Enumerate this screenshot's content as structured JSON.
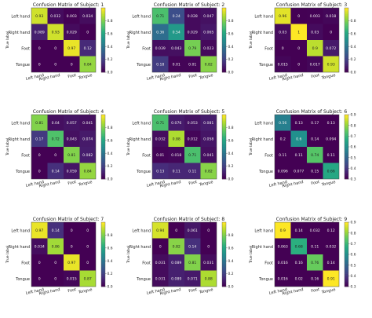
{
  "chart_data": [
    {
      "type": "heatmap",
      "title": "Confusion Matrix of Subject: 1",
      "ylabel": "True label",
      "x_categories": [
        "Left hand",
        "Right hand",
        "Foot",
        "Tongue"
      ],
      "y_categories": [
        "Left hand",
        "Right hand",
        "Foot",
        "Tongue"
      ],
      "values": [
        [
          0.93,
          0.032,
          0.003,
          0.034
        ],
        [
          0.089,
          0.93,
          0.029,
          0
        ],
        [
          0,
          0,
          0.97,
          0.12
        ],
        [
          0,
          0,
          0,
          0.84
        ]
      ],
      "cells": [
        [
          "0.93",
          "0.032",
          "0.003",
          "0.034"
        ],
        [
          "0.089",
          "0.93",
          "0.029",
          "0"
        ],
        [
          "0",
          "0",
          "0.97",
          "0.12"
        ],
        [
          "0",
          "0",
          "0",
          "0.84"
        ]
      ],
      "colorbar_ticks": [
        "0.0",
        "0.2",
        "0.4",
        "0.6",
        "0.8"
      ],
      "colorbar_range": [
        0,
        1
      ]
    },
    {
      "type": "heatmap",
      "title": "Confusion Matrix of Subject: 2",
      "ylabel": "True label",
      "x_categories": [
        "Left hand",
        "Right hand",
        "Foot",
        "Tongue"
      ],
      "y_categories": [
        "Left hand",
        "Right hand",
        "Foot",
        "Tongue"
      ],
      "values": [
        [
          0.71,
          0.24,
          0.028,
          0.047
        ],
        [
          0.36,
          0.54,
          0.029,
          0.065
        ],
        [
          0.039,
          0.043,
          0.79,
          0.023
        ],
        [
          0.18,
          0.01,
          0.01,
          0.82
        ]
      ],
      "cells": [
        [
          "0.71",
          "0.24",
          "0.028",
          "0.047"
        ],
        [
          "0.36",
          "0.54",
          "0.029",
          "0.065"
        ],
        [
          "0.039",
          "0.043",
          "0.79",
          "0.023"
        ],
        [
          "0.18",
          "0.01",
          "0.01",
          "0.82"
        ]
      ],
      "colorbar_ticks": [
        "0.0",
        "0.2",
        "0.4",
        "0.6",
        "0.8"
      ],
      "colorbar_range": [
        0,
        1
      ]
    },
    {
      "type": "heatmap",
      "title": "Confusion Matrix of Subject: 3",
      "ylabel": "True label",
      "x_categories": [
        "Left hand",
        "Right hand",
        "Foot",
        "Tongue"
      ],
      "y_categories": [
        "Left hand",
        "Right hand",
        "Foot",
        "Tongue"
      ],
      "values": [
        [
          0.96,
          0,
          0.003,
          0.018
        ],
        [
          0.03,
          1,
          0.03,
          0
        ],
        [
          0,
          0,
          0.9,
          0.072
        ],
        [
          0.015,
          0,
          0.017,
          0.93
        ]
      ],
      "cells": [
        [
          "0.96",
          "0",
          "0.003",
          "0.018"
        ],
        [
          "0.03",
          "1",
          "0.03",
          "0"
        ],
        [
          "0",
          "0",
          "0.9",
          "0.072"
        ],
        [
          "0.015",
          "0",
          "0.017",
          "0.93"
        ]
      ],
      "colorbar_ticks": [
        "0.0",
        "0.2",
        "0.4",
        "0.6",
        "0.8"
      ],
      "colorbar_range": [
        0,
        1
      ]
    },
    {
      "type": "heatmap",
      "title": "Confusion Matrix of Subject: 4",
      "ylabel": "True label",
      "x_categories": [
        "Left hand",
        "Right hand",
        "Foot",
        "Tongue"
      ],
      "y_categories": [
        "Left hand",
        "Right hand",
        "Foot",
        "Tongue"
      ],
      "values": [
        [
          0.81,
          0.04,
          0.057,
          0.041
        ],
        [
          0.17,
          0.72,
          0.043,
          0.074
        ],
        [
          0,
          0,
          0.81,
          0.082
        ],
        [
          0,
          0.14,
          0.059,
          0.84
        ]
      ],
      "cells": [
        [
          "0.81",
          "0.04",
          "0.057",
          "0.041"
        ],
        [
          "0.17",
          "0.72",
          "0.043",
          "0.074"
        ],
        [
          "0",
          "0",
          "0.81",
          "0.082"
        ],
        [
          "0",
          "0.14",
          "0.059",
          "0.84"
        ]
      ],
      "colorbar_ticks": [
        "0.0",
        "0.2",
        "0.4",
        "0.6",
        "0.8"
      ],
      "colorbar_range": [
        0,
        1
      ]
    },
    {
      "type": "heatmap",
      "title": "Confusion Matrix of Subject: 5",
      "ylabel": "True label",
      "x_categories": [
        "Left hand",
        "Right hand",
        "Foot",
        "Tongue"
      ],
      "y_categories": [
        "Left hand",
        "Right hand",
        "Foot",
        "Tongue"
      ],
      "values": [
        [
          0.71,
          0.076,
          0.053,
          0.081
        ],
        [
          0.032,
          0.88,
          0.012,
          0.058
        ],
        [
          0.01,
          0.018,
          0.71,
          0.041
        ],
        [
          0.13,
          0.11,
          0.11,
          0.82
        ]
      ],
      "cells": [
        [
          "0.71",
          "0.076",
          "0.053",
          "0.081"
        ],
        [
          "0.032",
          "0.88",
          "0.012",
          "0.058"
        ],
        [
          "0.01",
          "0.018",
          "0.71",
          "0.041"
        ],
        [
          "0.13",
          "0.11",
          "0.11",
          "0.82"
        ]
      ],
      "colorbar_ticks": [
        "0.0",
        "0.2",
        "0.4",
        "0.6",
        "0.8"
      ],
      "colorbar_range": [
        0,
        1
      ]
    },
    {
      "type": "heatmap",
      "title": "Confusion Matrix of Subject: 6",
      "ylabel": "True label",
      "x_categories": [
        "Left hand",
        "Right hand",
        "Foot",
        "Tongue"
      ],
      "y_categories": [
        "Left hand",
        "Right hand",
        "Foot",
        "Tongue"
      ],
      "values": [
        [
          0.56,
          0.13,
          0.17,
          0.13
        ],
        [
          0.2,
          0.6,
          0.14,
          0.094
        ],
        [
          0.11,
          0.11,
          0.74,
          0.11
        ],
        [
          0.096,
          0.077,
          0.15,
          0.66
        ]
      ],
      "cells": [
        [
          "0.56",
          "0.13",
          "0.17",
          "0.13"
        ],
        [
          "0.2",
          "0.6",
          "0.14",
          "0.094"
        ],
        [
          "0.11",
          "0.11",
          "0.74",
          "0.11"
        ],
        [
          "0.096",
          "0.077",
          "0.15",
          "0.66"
        ]
      ],
      "colorbar_ticks": [
        "0.3",
        "0.4",
        "0.5",
        "0.6",
        "0.7",
        "0.8",
        "0.9"
      ],
      "colorbar_range": [
        0.3,
        0.9
      ]
    },
    {
      "type": "heatmap",
      "title": "Confusion Matrix of Subject: 7",
      "ylabel": "True label",
      "x_categories": [
        "Left hand",
        "Right hand",
        "Foot",
        "Tongue"
      ],
      "y_categories": [
        "Left hand",
        "Right hand",
        "Foot",
        "Tongue"
      ],
      "values": [
        [
          0.97,
          0.14,
          0.0,
          0.0
        ],
        [
          0.034,
          0.86,
          0.0,
          0.0
        ],
        [
          0,
          0,
          0.97,
          0.0
        ],
        [
          0,
          0,
          0.015,
          0.87
        ]
      ],
      "cells": [
        [
          "0.97",
          "0.14",
          "0",
          "0"
        ],
        [
          "0.034",
          "0.86",
          "0",
          "0"
        ],
        [
          "0",
          "0",
          "0.97",
          "0"
        ],
        [
          "0",
          "0",
          "0.015",
          "0.87"
        ]
      ],
      "colorbar_ticks": [
        "0.0",
        "0.2",
        "0.4",
        "0.6",
        "0.8"
      ],
      "colorbar_range": [
        0,
        1
      ]
    },
    {
      "type": "heatmap",
      "title": "Confusion Matrix of Subject: 8",
      "ylabel": "True label",
      "x_categories": [
        "Left hand",
        "Right hand",
        "Foot",
        "Tongue"
      ],
      "y_categories": [
        "Left hand",
        "Right hand",
        "Foot",
        "Tongue"
      ],
      "values": [
        [
          0.94,
          0,
          0.061,
          0
        ],
        [
          0,
          0.82,
          0.14,
          0
        ],
        [
          0.031,
          0.089,
          0.81,
          0.031
        ],
        [
          0.031,
          0.089,
          0.071,
          0.88
        ]
      ],
      "cells": [
        [
          "0.94",
          "0",
          "0.061",
          "0"
        ],
        [
          "0",
          "0.82",
          "0.14",
          "0"
        ],
        [
          "0.031",
          "0.089",
          "0.81",
          "0.031"
        ],
        [
          "0.031",
          "0.089",
          "0.071",
          "0.88"
        ]
      ],
      "colorbar_ticks": [
        "0.0",
        "0.2",
        "0.4",
        "0.6",
        "0.8"
      ],
      "colorbar_range": [
        0,
        1
      ]
    },
    {
      "type": "heatmap",
      "title": "Confusion Matrix of Subject: 9",
      "ylabel": "True label",
      "x_categories": [
        "Left hand",
        "Right hand",
        "Foot",
        "Tongue"
      ],
      "y_categories": [
        "Left hand",
        "Right hand",
        "Foot",
        "Tongue"
      ],
      "values": [
        [
          0.9,
          0.14,
          0.032,
          0.12
        ],
        [
          0.063,
          0.68,
          0.11,
          0.032
        ],
        [
          0.016,
          0.16,
          0.76,
          0.14
        ],
        [
          0.016,
          0.02,
          0.16,
          0.91
        ]
      ],
      "cells": [
        [
          "0.9",
          "0.14",
          "0.032",
          "0.12"
        ],
        [
          "0.063",
          "0.68",
          "0.11",
          "0.032"
        ],
        [
          "0.016",
          "0.16",
          "0.76",
          "0.14"
        ],
        [
          "0.016",
          "0.02",
          "0.16",
          "0.91"
        ]
      ],
      "colorbar_ticks": [
        "0.3",
        "0.4",
        "0.5",
        "0.6",
        "0.7",
        "0.8",
        "0.9"
      ],
      "colorbar_range": [
        0.3,
        0.9
      ]
    }
  ]
}
